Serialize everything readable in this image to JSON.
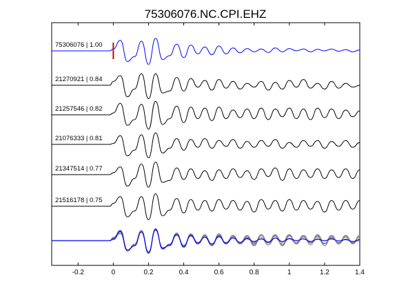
{
  "chart_data": {
    "type": "line",
    "title": "75306076.NC.CPI.EHZ",
    "xlabel": "",
    "ylabel": "",
    "xlim": [
      -0.35,
      1.4
    ],
    "xticks": [
      "-0.2",
      "0",
      "0.2",
      "0.4",
      "0.6",
      "0.8",
      "1",
      "1.2",
      "1.4"
    ],
    "xtick_values": [
      -0.2,
      0,
      0.2,
      0.4,
      0.6,
      0.8,
      1.0,
      1.2,
      1.4
    ],
    "grid": false,
    "pick_time": 0,
    "colors": {
      "reference": "#0000ff",
      "match": "#000000",
      "overlay_match": "#808080",
      "pick": "#cc0000"
    },
    "series": [
      {
        "name": "75306076 | 1.00",
        "label_id": "75306076",
        "label_cc": "1.00",
        "color": "#0000ff",
        "x": [
          0,
          0.04,
          0.08,
          0.12,
          0.16,
          0.2,
          0.24,
          0.28,
          0.32,
          0.36,
          0.4,
          0.44,
          0.48,
          0.52,
          0.56,
          0.6,
          0.64,
          0.68,
          0.72,
          0.76,
          0.8,
          0.84,
          0.88,
          0.92,
          0.96,
          1.0,
          1.04,
          1.08,
          1.12,
          1.16,
          1.2,
          1.24,
          1.28,
          1.32,
          1.36,
          1.4
        ],
        "y": [
          0.1,
          0.55,
          -0.55,
          -0.3,
          0.5,
          -0.7,
          0.65,
          -0.45,
          -0.25,
          0.35,
          -0.35,
          0.3,
          -0.15,
          0.2,
          -0.2,
          0.25,
          -0.15,
          0.15,
          -0.1,
          0.12,
          -0.05,
          0.1,
          -0.08,
          0.15,
          -0.05,
          0.12,
          0.0,
          0.1,
          -0.05,
          0.08,
          0.0,
          0.1,
          -0.02,
          0.06,
          -0.05,
          0.05
        ]
      },
      {
        "name": "21270921 | 0.84",
        "label_id": "21270921",
        "label_cc": "0.84",
        "color": "#000000",
        "x": [
          0,
          0.04,
          0.08,
          0.12,
          0.16,
          0.2,
          0.24,
          0.28,
          0.32,
          0.36,
          0.4,
          0.44,
          0.48,
          0.52,
          0.56,
          0.6,
          0.64,
          0.68,
          0.72,
          0.76,
          0.8,
          0.84,
          0.88,
          0.92,
          0.96,
          1.0,
          1.04,
          1.08,
          1.12,
          1.16,
          1.2,
          1.24,
          1.28,
          1.32,
          1.36,
          1.4
        ],
        "y": [
          0.2,
          0.5,
          -0.6,
          -0.2,
          0.6,
          -0.7,
          0.6,
          -0.4,
          -0.3,
          0.4,
          -0.3,
          0.35,
          -0.1,
          0.25,
          -0.25,
          0.3,
          -0.15,
          0.2,
          -0.2,
          0.1,
          -0.1,
          0.2,
          -0.25,
          0.15,
          -0.2,
          0.25,
          -0.1,
          0.3,
          -0.15,
          0.1,
          -0.2,
          0.2,
          -0.15,
          0.1,
          -0.1,
          0.0
        ]
      },
      {
        "name": "21257546 | 0.82",
        "label_id": "21257546",
        "label_cc": "0.82",
        "color": "#000000",
        "x": [
          0,
          0.04,
          0.08,
          0.12,
          0.16,
          0.2,
          0.24,
          0.28,
          0.32,
          0.36,
          0.4,
          0.44,
          0.48,
          0.52,
          0.56,
          0.6,
          0.64,
          0.68,
          0.72,
          0.76,
          0.8,
          0.84,
          0.88,
          0.92,
          0.96,
          1.0,
          1.04,
          1.08,
          1.12,
          1.16,
          1.2,
          1.24,
          1.28,
          1.32,
          1.36,
          1.4
        ],
        "y": [
          0.1,
          0.6,
          -0.55,
          -0.25,
          0.55,
          -0.75,
          0.7,
          -0.5,
          -0.2,
          0.45,
          -0.4,
          0.4,
          -0.2,
          0.35,
          -0.3,
          0.4,
          -0.2,
          0.25,
          -0.15,
          0.3,
          -0.2,
          0.35,
          -0.25,
          0.3,
          -0.1,
          0.35,
          -0.2,
          0.3,
          -0.25,
          0.35,
          -0.15,
          0.3,
          -0.2,
          0.25,
          -0.1,
          0.2
        ]
      },
      {
        "name": "21076333 | 0.81",
        "label_id": "21076333",
        "label_cc": "0.81",
        "color": "#000000",
        "x": [
          0,
          0.04,
          0.08,
          0.12,
          0.16,
          0.2,
          0.24,
          0.28,
          0.32,
          0.36,
          0.4,
          0.44,
          0.48,
          0.52,
          0.56,
          0.6,
          0.64,
          0.68,
          0.72,
          0.76,
          0.8,
          0.84,
          0.88,
          0.92,
          0.96,
          1.0,
          1.04,
          1.08,
          1.12,
          1.16,
          1.2,
          1.24,
          1.28,
          1.32,
          1.36,
          1.4
        ],
        "y": [
          0.05,
          0.45,
          -0.6,
          -0.3,
          0.5,
          -0.7,
          0.6,
          -0.45,
          -0.2,
          0.3,
          -0.3,
          0.25,
          -0.15,
          0.3,
          -0.2,
          0.2,
          -0.1,
          0.25,
          -0.2,
          0.15,
          -0.15,
          0.2,
          -0.1,
          0.25,
          -0.2,
          0.1,
          -0.15,
          0.2,
          -0.1,
          0.2,
          -0.2,
          0.15,
          -0.1,
          0.2,
          -0.15,
          0.1
        ]
      },
      {
        "name": "21347514 | 0.77",
        "label_id": "21347514",
        "label_cc": "0.77",
        "color": "#000000",
        "x": [
          0,
          0.04,
          0.08,
          0.12,
          0.16,
          0.2,
          0.24,
          0.28,
          0.32,
          0.36,
          0.4,
          0.44,
          0.48,
          0.52,
          0.56,
          0.6,
          0.64,
          0.68,
          0.72,
          0.76,
          0.8,
          0.84,
          0.88,
          0.92,
          0.96,
          1.0,
          1.04,
          1.08,
          1.12,
          1.16,
          1.2,
          1.24,
          1.28,
          1.32,
          1.36,
          1.4
        ],
        "y": [
          0.1,
          0.4,
          -0.6,
          -0.2,
          0.55,
          -0.65,
          0.65,
          -0.4,
          -0.3,
          0.35,
          -0.25,
          0.3,
          -0.2,
          0.2,
          -0.3,
          0.25,
          -0.2,
          0.3,
          -0.15,
          0.2,
          -0.25,
          0.3,
          -0.1,
          0.35,
          -0.3,
          0.3,
          -0.2,
          0.25,
          -0.15,
          0.3,
          -0.2,
          0.25,
          -0.15,
          0.3,
          -0.2,
          0.25
        ]
      },
      {
        "name": "21516178 | 0.75",
        "label_id": "21516178",
        "label_cc": "0.75",
        "color": "#000000",
        "x": [
          0,
          0.04,
          0.08,
          0.12,
          0.16,
          0.2,
          0.24,
          0.28,
          0.32,
          0.36,
          0.4,
          0.44,
          0.48,
          0.52,
          0.56,
          0.6,
          0.64,
          0.68,
          0.72,
          0.76,
          0.8,
          0.84,
          0.88,
          0.92,
          0.96,
          1.0,
          1.04,
          1.08,
          1.12,
          1.16,
          1.2,
          1.24,
          1.28,
          1.32,
          1.36,
          1.4
        ],
        "y": [
          0.15,
          0.5,
          -0.55,
          -0.25,
          0.5,
          -0.7,
          0.65,
          -0.5,
          -0.2,
          0.4,
          -0.35,
          0.35,
          -0.2,
          0.3,
          -0.25,
          0.35,
          -0.15,
          0.3,
          -0.2,
          0.25,
          -0.3,
          0.35,
          -0.15,
          0.3,
          -0.25,
          0.35,
          -0.2,
          0.3,
          -0.15,
          0.25,
          -0.3,
          0.3,
          -0.2,
          0.3,
          -0.15,
          0.3
        ]
      }
    ]
  }
}
